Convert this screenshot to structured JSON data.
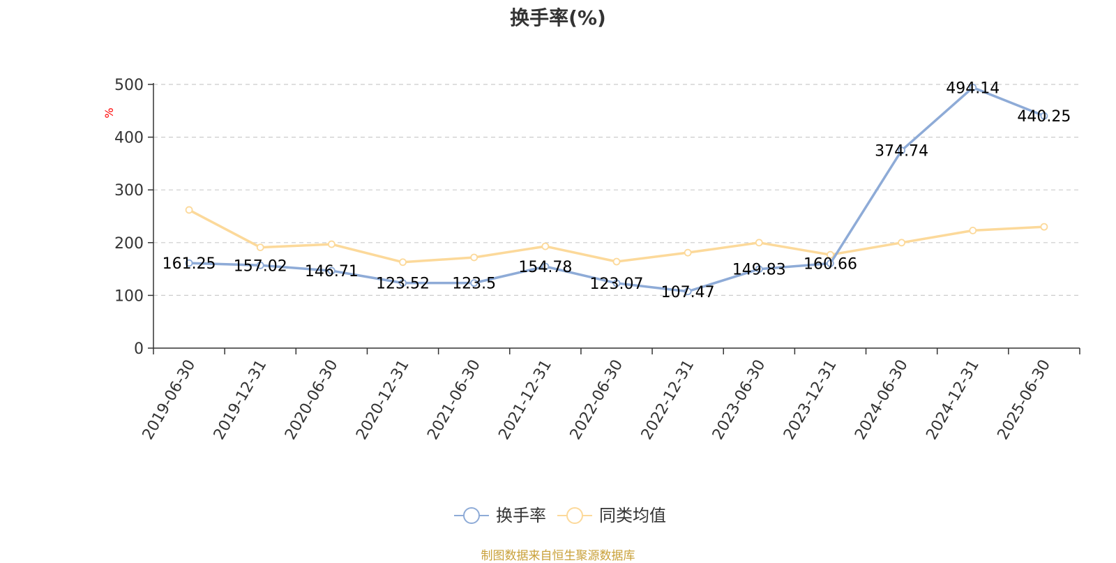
{
  "chart_data": {
    "type": "line",
    "title": "换手率(%)",
    "ylabel": "%",
    "xlabel": "",
    "categories": [
      "2019-06-30",
      "2019-12-31",
      "2020-06-30",
      "2020-12-31",
      "2021-06-30",
      "2021-12-31",
      "2022-06-30",
      "2022-12-31",
      "2023-06-30",
      "2023-12-31",
      "2024-06-30",
      "2024-12-31",
      "2025-06-30"
    ],
    "ylim": [
      0,
      500
    ],
    "yticks": [
      0,
      100,
      200,
      300,
      400,
      500
    ],
    "grid": true,
    "legend_position": "bottom",
    "series": [
      {
        "name": "换手率",
        "color": "#8eabd7",
        "show_labels": true,
        "values": [
          161.25,
          157.02,
          146.71,
          123.52,
          123.5,
          154.78,
          123.07,
          107.47,
          149.83,
          160.66,
          374.74,
          494.14,
          440.25
        ]
      },
      {
        "name": "同类均值",
        "color": "#fcd99a",
        "show_labels": false,
        "values": [
          262,
          191,
          197,
          163,
          172,
          193,
          164,
          181,
          200,
          177,
          200,
          223,
          230
        ]
      }
    ],
    "source": "制图数据来自恒生聚源数据库"
  },
  "colors": {
    "axis": "#333333",
    "grid": "#cccccc",
    "ylabel": "#ff0000",
    "source": "#c9a13a"
  }
}
